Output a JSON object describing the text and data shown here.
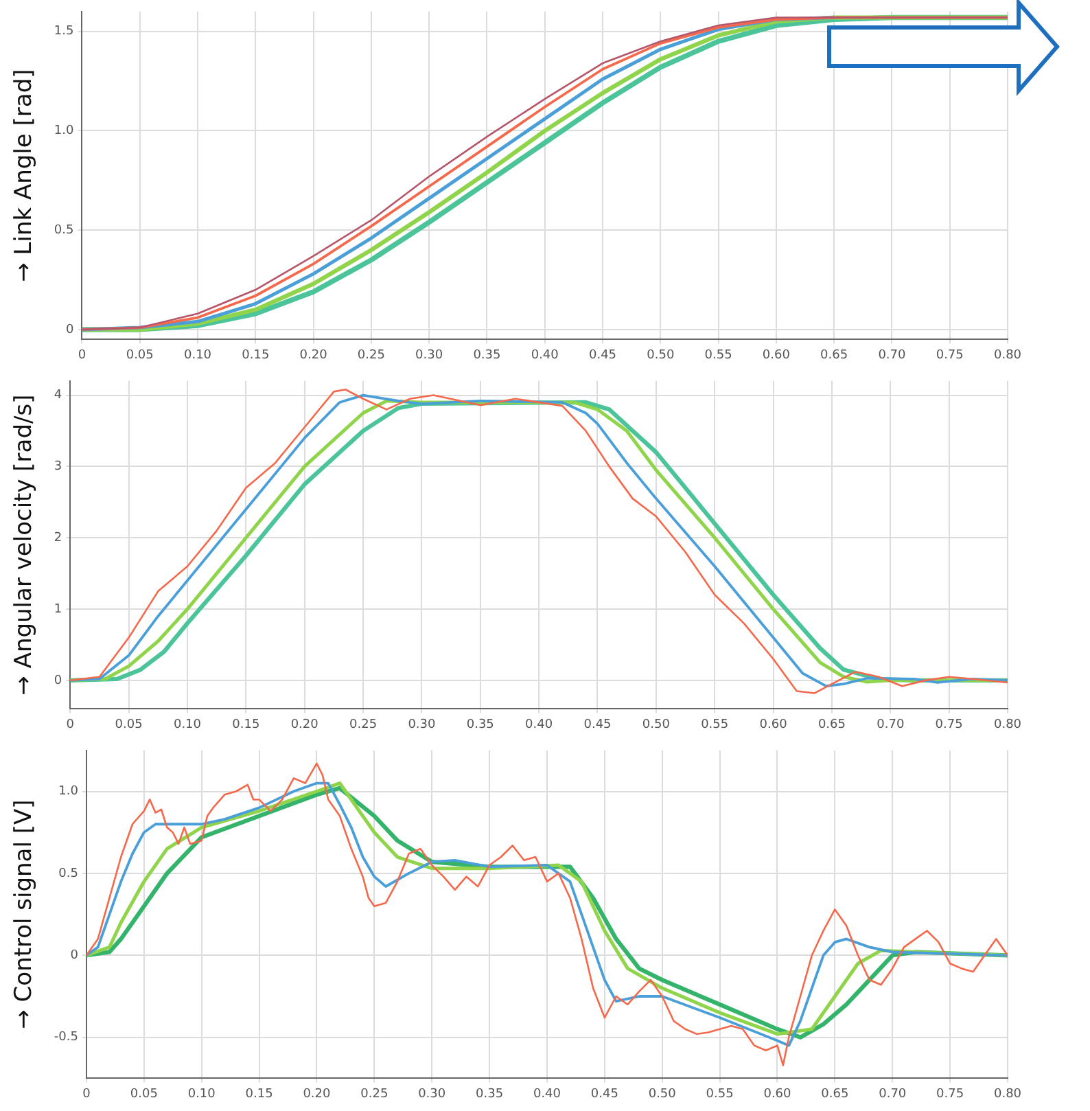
{
  "chart_data": [
    {
      "type": "line",
      "ylabel": "→ Link Angle [rad]",
      "xlim": [
        0,
        0.8
      ],
      "ylim": [
        -0.05,
        1.6
      ],
      "grid": true,
      "xticks": [
        0,
        0.05,
        {
          "value": 0.1,
          "label": "0.10"
        },
        0.15,
        {
          "value": 0.2,
          "label": "0.20"
        },
        0.25,
        {
          "value": 0.3,
          "label": "0.30"
        },
        0.35,
        {
          "value": 0.4,
          "label": "0.40"
        },
        0.45,
        {
          "value": 0.5,
          "label": "0.50"
        },
        0.55,
        {
          "value": 0.6,
          "label": "0.60"
        },
        0.65,
        {
          "value": 0.7,
          "label": "0.70"
        },
        0.75,
        {
          "value": 0.8,
          "label": "0.80"
        }
      ],
      "yticks": [
        0,
        0.5,
        {
          "value": 1,
          "label": "1.0"
        },
        1.5
      ],
      "series": [
        {
          "color": "#b5566a",
          "x": [
            0,
            0.05,
            0.1,
            0.15,
            0.2,
            0.25,
            0.3,
            0.35,
            0.4,
            0.45,
            0.5,
            0.55,
            0.6,
            0.65,
            0.7,
            0.8
          ],
          "values": [
            0,
            0.01,
            0.08,
            0.2,
            0.37,
            0.55,
            0.77,
            0.97,
            1.16,
            1.34,
            1.45,
            1.53,
            1.57,
            1.57,
            1.57,
            1.57
          ]
        },
        {
          "color": "#f4694c",
          "x": [
            0,
            0.05,
            0.1,
            0.15,
            0.2,
            0.25,
            0.3,
            0.35,
            0.4,
            0.45,
            0.5,
            0.55,
            0.6,
            0.65,
            0.7,
            0.8
          ],
          "values": [
            0,
            0.01,
            0.06,
            0.17,
            0.33,
            0.52,
            0.72,
            0.92,
            1.12,
            1.31,
            1.44,
            1.52,
            1.56,
            1.57,
            1.57,
            1.57
          ]
        },
        {
          "color": "#4a9fd8",
          "x": [
            0,
            0.05,
            0.1,
            0.15,
            0.2,
            0.25,
            0.3,
            0.35,
            0.4,
            0.45,
            0.5,
            0.55,
            0.6,
            0.65
          ],
          "values": [
            0,
            0.01,
            0.04,
            0.13,
            0.28,
            0.46,
            0.66,
            0.86,
            1.06,
            1.26,
            1.41,
            1.51,
            1.56,
            1.57
          ]
        },
        {
          "color": "#8fd44a",
          "x": [
            0,
            0.05,
            0.1,
            0.15,
            0.2,
            0.25,
            0.3,
            0.35,
            0.4,
            0.45,
            0.5,
            0.55,
            0.6,
            0.65,
            0.7,
            0.8
          ],
          "values": [
            0,
            0,
            0.03,
            0.1,
            0.23,
            0.4,
            0.59,
            0.79,
            1.0,
            1.19,
            1.36,
            1.48,
            1.55,
            1.57,
            1.57,
            1.57
          ]
        },
        {
          "color": "#4cc49a",
          "x": [
            0,
            0.05,
            0.1,
            0.15,
            0.2,
            0.25,
            0.3,
            0.35,
            0.4,
            0.45,
            0.5,
            0.55,
            0.6,
            0.65,
            0.7,
            0.8
          ],
          "values": [
            0,
            0,
            0.02,
            0.08,
            0.19,
            0.35,
            0.54,
            0.74,
            0.94,
            1.14,
            1.32,
            1.45,
            1.53,
            1.56,
            1.57,
            1.57
          ]
        }
      ]
    },
    {
      "type": "line",
      "ylabel": "→ Angular velocity [rad/s]",
      "xlim": [
        0,
        0.8
      ],
      "ylim": [
        -0.4,
        4.2
      ],
      "grid": true,
      "xticks": [
        0,
        0.05,
        {
          "value": 0.1,
          "label": "0.10"
        },
        0.15,
        {
          "value": 0.2,
          "label": "0.20"
        },
        0.25,
        {
          "value": 0.3,
          "label": "0.30"
        },
        0.35,
        {
          "value": 0.4,
          "label": "0.40"
        },
        0.45,
        {
          "value": 0.5,
          "label": "0.50"
        },
        0.55,
        {
          "value": 0.6,
          "label": "0.60"
        },
        0.65,
        {
          "value": 0.7,
          "label": "0.70"
        },
        0.75,
        {
          "value": 0.8,
          "label": "0.80"
        }
      ],
      "yticks": [
        0,
        1,
        2,
        3,
        4
      ],
      "series": [
        {
          "color": "#f4694c",
          "x": [
            0,
            0.025,
            0.05,
            0.075,
            0.1,
            0.125,
            0.15,
            0.175,
            0.2,
            0.225,
            0.235,
            0.25,
            0.27,
            0.29,
            0.31,
            0.35,
            0.38,
            0.42,
            0.44,
            0.46,
            0.48,
            0.5,
            0.525,
            0.55,
            0.575,
            0.6,
            0.62,
            0.635,
            0.65,
            0.67,
            0.69,
            0.71,
            0.73,
            0.75,
            0.77,
            0.8
          ],
          "values": [
            0,
            0.05,
            0.6,
            1.25,
            1.6,
            2.1,
            2.7,
            3.05,
            3.55,
            4.05,
            4.08,
            3.95,
            3.8,
            3.95,
            4.0,
            3.86,
            3.95,
            3.85,
            3.5,
            3.0,
            2.55,
            2.3,
            1.8,
            1.2,
            0.8,
            0.3,
            -0.15,
            -0.18,
            -0.05,
            0.12,
            0.05,
            -0.08,
            0,
            0.05,
            0.02,
            -0.03
          ]
        },
        {
          "color": "#4a9fd8",
          "x": [
            0,
            0.025,
            0.05,
            0.075,
            0.1,
            0.15,
            0.2,
            0.23,
            0.25,
            0.28,
            0.3,
            0.35,
            0.42,
            0.44,
            0.45,
            0.475,
            0.5,
            0.55,
            0.6,
            0.625,
            0.645,
            0.66,
            0.68,
            0.72,
            0.74,
            0.77,
            0.8
          ],
          "values": [
            0,
            0.02,
            0.35,
            0.9,
            1.4,
            2.4,
            3.4,
            3.9,
            4.0,
            3.92,
            3.88,
            3.92,
            3.9,
            3.75,
            3.6,
            3.05,
            2.55,
            1.6,
            0.6,
            0.1,
            -0.08,
            -0.05,
            0.03,
            0.02,
            -0.03,
            0.02,
            0
          ]
        },
        {
          "color": "#8fd44a",
          "x": [
            0,
            0.03,
            0.05,
            0.075,
            0.1,
            0.15,
            0.2,
            0.25,
            0.27,
            0.3,
            0.43,
            0.45,
            0.475,
            0.5,
            0.55,
            0.6,
            0.64,
            0.66,
            0.68,
            0.7,
            0.8
          ],
          "values": [
            0,
            0.02,
            0.2,
            0.55,
            1.0,
            2.0,
            3.0,
            3.75,
            3.92,
            3.9,
            3.9,
            3.8,
            3.5,
            2.95,
            2.0,
            1.0,
            0.25,
            0.05,
            -0.02,
            0,
            0
          ]
        },
        {
          "color": "#4cc49a",
          "x": [
            0,
            0.04,
            0.06,
            0.08,
            0.1,
            0.15,
            0.2,
            0.25,
            0.28,
            0.3,
            0.44,
            0.46,
            0.5,
            0.55,
            0.6,
            0.64,
            0.66,
            0.69,
            0.72,
            0.8
          ],
          "values": [
            0,
            0.02,
            0.15,
            0.4,
            0.8,
            1.75,
            2.75,
            3.5,
            3.82,
            3.88,
            3.9,
            3.8,
            3.2,
            2.2,
            1.2,
            0.45,
            0.15,
            0.02,
            0,
            0
          ]
        }
      ]
    },
    {
      "type": "line",
      "ylabel": "→ Control signal [V]",
      "xlim": [
        0,
        0.8
      ],
      "ylim": [
        -0.75,
        1.25
      ],
      "grid": true,
      "xticks": [
        0,
        0.05,
        {
          "value": 0.1,
          "label": "0.10"
        },
        0.15,
        {
          "value": 0.2,
          "label": "0.20"
        },
        0.25,
        {
          "value": 0.3,
          "label": "0.30"
        },
        0.35,
        {
          "value": 0.4,
          "label": "0.40"
        },
        0.45,
        {
          "value": 0.5,
          "label": "0.50"
        },
        0.55,
        {
          "value": 0.6,
          "label": "0.60"
        },
        0.65,
        {
          "value": 0.7,
          "label": "0.70"
        },
        0.75,
        {
          "value": 0.8,
          "label": "0.80"
        }
      ],
      "yticks": [
        -0.5,
        0,
        0.5,
        {
          "value": 1,
          "label": "1.0"
        }
      ],
      "series": [
        {
          "color": "#f4694c",
          "x": [
            0,
            0.01,
            0.02,
            0.03,
            0.04,
            0.05,
            0.055,
            0.06,
            0.065,
            0.07,
            0.075,
            0.08,
            0.085,
            0.09,
            0.1,
            0.105,
            0.11,
            0.12,
            0.13,
            0.14,
            0.145,
            0.15,
            0.16,
            0.17,
            0.18,
            0.19,
            0.2,
            0.205,
            0.21,
            0.22,
            0.23,
            0.24,
            0.245,
            0.25,
            0.26,
            0.27,
            0.28,
            0.29,
            0.3,
            0.31,
            0.32,
            0.33,
            0.34,
            0.35,
            0.36,
            0.37,
            0.38,
            0.39,
            0.4,
            0.41,
            0.42,
            0.43,
            0.44,
            0.45,
            0.46,
            0.47,
            0.48,
            0.49,
            0.5,
            0.51,
            0.52,
            0.53,
            0.54,
            0.55,
            0.56,
            0.57,
            0.58,
            0.59,
            0.6,
            0.605,
            0.61,
            0.62,
            0.63,
            0.64,
            0.65,
            0.66,
            0.67,
            0.68,
            0.69,
            0.7,
            0.71,
            0.72,
            0.73,
            0.74,
            0.75,
            0.76,
            0.77,
            0.78,
            0.79,
            0.8
          ],
          "values": [
            0,
            0.1,
            0.35,
            0.6,
            0.8,
            0.88,
            0.95,
            0.87,
            0.89,
            0.78,
            0.75,
            0.68,
            0.78,
            0.68,
            0.7,
            0.85,
            0.9,
            0.98,
            1.0,
            1.04,
            0.95,
            0.95,
            0.88,
            0.95,
            1.08,
            1.05,
            1.17,
            1.1,
            0.95,
            0.85,
            0.65,
            0.48,
            0.35,
            0.3,
            0.32,
            0.45,
            0.62,
            0.65,
            0.55,
            0.48,
            0.4,
            0.48,
            0.42,
            0.55,
            0.6,
            0.67,
            0.58,
            0.6,
            0.45,
            0.5,
            0.35,
            0.1,
            -0.2,
            -0.38,
            -0.25,
            -0.3,
            -0.22,
            -0.15,
            -0.25,
            -0.4,
            -0.45,
            -0.48,
            -0.47,
            -0.45,
            -0.43,
            -0.45,
            -0.55,
            -0.58,
            -0.55,
            -0.67,
            -0.5,
            -0.25,
            0,
            0.15,
            0.28,
            0.18,
            0,
            -0.15,
            -0.18,
            -0.08,
            0.05,
            0.1,
            0.15,
            0.08,
            -0.05,
            -0.08,
            -0.1,
            0,
            0.1,
            0
          ]
        },
        {
          "color": "#4a9fd8",
          "x": [
            0,
            0.01,
            0.02,
            0.03,
            0.04,
            0.05,
            0.06,
            0.08,
            0.1,
            0.12,
            0.15,
            0.18,
            0.2,
            0.21,
            0.22,
            0.23,
            0.24,
            0.25,
            0.26,
            0.28,
            0.3,
            0.32,
            0.35,
            0.4,
            0.42,
            0.43,
            0.44,
            0.45,
            0.46,
            0.48,
            0.5,
            0.55,
            0.6,
            0.61,
            0.62,
            0.63,
            0.64,
            0.65,
            0.66,
            0.68,
            0.7,
            0.75,
            0.8
          ],
          "values": [
            0,
            0.05,
            0.25,
            0.45,
            0.62,
            0.75,
            0.8,
            0.8,
            0.8,
            0.83,
            0.9,
            1.0,
            1.05,
            1.05,
            0.92,
            0.78,
            0.6,
            0.48,
            0.42,
            0.5,
            0.57,
            0.58,
            0.54,
            0.55,
            0.45,
            0.25,
            0.05,
            -0.15,
            -0.28,
            -0.25,
            -0.25,
            -0.38,
            -0.52,
            -0.55,
            -0.4,
            -0.2,
            0,
            0.08,
            0.1,
            0.05,
            0.02,
            0.01,
            0
          ]
        },
        {
          "color": "#8fd44a",
          "x": [
            0,
            0.02,
            0.03,
            0.05,
            0.07,
            0.1,
            0.15,
            0.2,
            0.22,
            0.23,
            0.25,
            0.27,
            0.3,
            0.35,
            0.41,
            0.43,
            0.45,
            0.47,
            0.5,
            0.55,
            0.6,
            0.63,
            0.65,
            0.67,
            0.69,
            0.72,
            0.8
          ],
          "values": [
            0,
            0.05,
            0.2,
            0.45,
            0.65,
            0.78,
            0.88,
            1.0,
            1.05,
            0.95,
            0.75,
            0.6,
            0.53,
            0.53,
            0.55,
            0.45,
            0.15,
            -0.08,
            -0.2,
            -0.35,
            -0.48,
            -0.45,
            -0.25,
            -0.05,
            0.03,
            0.02,
            0
          ]
        },
        {
          "color": "#34b36a",
          "x": [
            0,
            0.02,
            0.03,
            0.05,
            0.07,
            0.1,
            0.15,
            0.2,
            0.22,
            0.25,
            0.27,
            0.3,
            0.35,
            0.42,
            0.44,
            0.46,
            0.48,
            0.5,
            0.55,
            0.6,
            0.62,
            0.64,
            0.66,
            0.68,
            0.7,
            0.72,
            0.8
          ],
          "values": [
            0,
            0.02,
            0.1,
            0.3,
            0.5,
            0.72,
            0.85,
            0.98,
            1.02,
            0.85,
            0.7,
            0.57,
            0.54,
            0.54,
            0.35,
            0.1,
            -0.08,
            -0.15,
            -0.3,
            -0.45,
            -0.5,
            -0.42,
            -0.3,
            -0.15,
            0,
            0.02,
            0
          ]
        }
      ]
    }
  ]
}
